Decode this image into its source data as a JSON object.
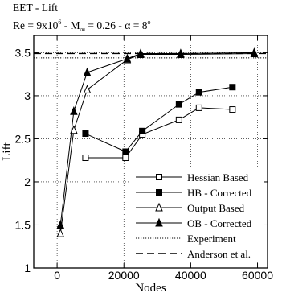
{
  "title_line1": "EET - Lift",
  "title_line2": {
    "re": "Re = 9x10",
    "re_exp": "6",
    "mach": " - M",
    "mach_sub": "∞",
    "mach_val": " = 0.26 - α = 8",
    "deg": "o"
  },
  "chart_data": {
    "type": "line",
    "xlabel": "Nodes",
    "ylabel": "Lift",
    "xlim": [
      -7000,
      63000
    ],
    "ylim": [
      1,
      3.7
    ],
    "xticks": [
      0,
      20000,
      40000,
      60000
    ],
    "yticks": [
      1,
      1.5,
      2,
      2.5,
      3,
      3.5
    ],
    "grid": "dotted",
    "legend_position": "bottom-right",
    "series": [
      {
        "name": "Hessian Based",
        "marker": "square-open",
        "style": "solid",
        "x": [
          8500,
          20500,
          25500,
          36500,
          42500,
          52500
        ],
        "y": [
          2.28,
          2.28,
          2.55,
          2.72,
          2.86,
          2.84
        ]
      },
      {
        "name": "HB - Corrected",
        "marker": "square-filled",
        "style": "solid",
        "x": [
          8500,
          20500,
          25500,
          36500,
          42500,
          52500
        ],
        "y": [
          2.56,
          2.35,
          2.59,
          2.9,
          3.04,
          3.1
        ]
      },
      {
        "name": "Output Based",
        "marker": "triangle-open",
        "style": "solid",
        "x": [
          1000,
          5000,
          9000,
          21000,
          25000,
          37000,
          59000
        ],
        "y": [
          1.4,
          2.6,
          3.07,
          3.42,
          3.48,
          3.48,
          3.49
        ]
      },
      {
        "name": "OB - Corrected",
        "marker": "triangle-filled",
        "style": "solid",
        "x": [
          1000,
          5000,
          9000,
          21000,
          25000,
          37000,
          59000
        ],
        "y": [
          1.5,
          2.82,
          3.27,
          3.43,
          3.49,
          3.49,
          3.5
        ]
      },
      {
        "name": "Experiment",
        "marker": "none",
        "style": "dotted",
        "y_const": 3.44
      },
      {
        "name": "Anderson et al.",
        "marker": "none",
        "style": "dashed",
        "y_const": 3.49
      }
    ]
  }
}
